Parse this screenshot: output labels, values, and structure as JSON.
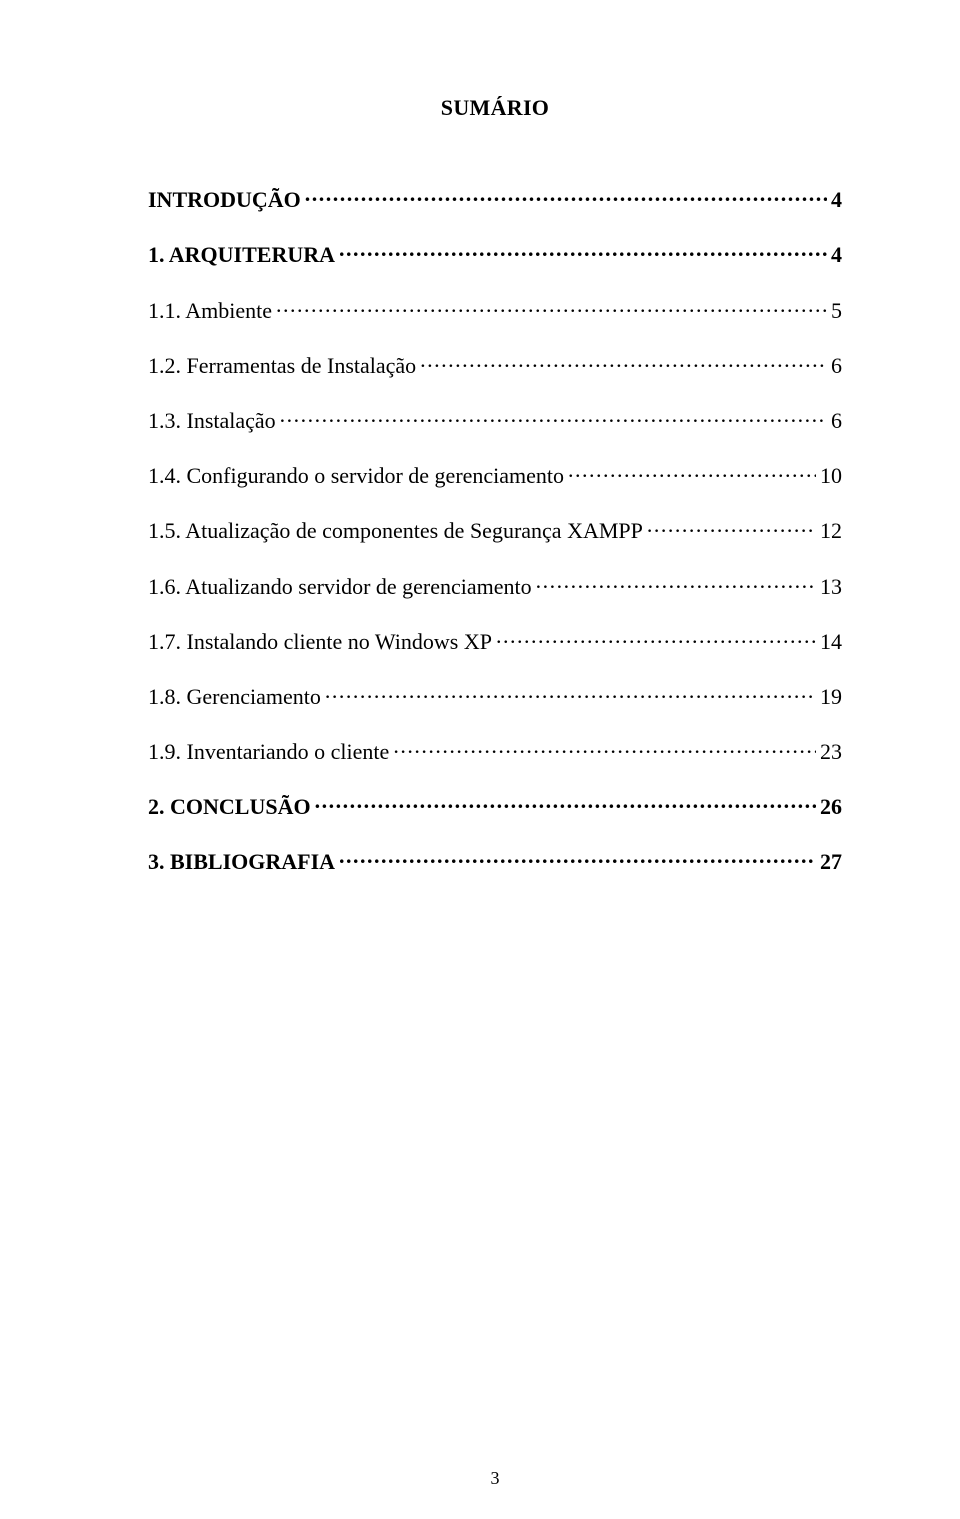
{
  "title": "SUMÁRIO",
  "pageNumber": "3",
  "toc": [
    {
      "label": "INTRODUÇÃO",
      "page": "4",
      "bold": true
    },
    {
      "label": "1. ARQUITERURA",
      "page": "4",
      "bold": true
    },
    {
      "label": "1.1. Ambiente",
      "page": "5",
      "bold": false
    },
    {
      "label": "1.2. Ferramentas de Instalação",
      "page": "6",
      "bold": false
    },
    {
      "label": "1.3. Instalação",
      "page": "6",
      "bold": false
    },
    {
      "label": "1.4. Configurando o servidor de gerenciamento",
      "page": "10",
      "bold": false
    },
    {
      "label": "1.5. Atualização de componentes de Segurança XAMPP",
      "page": "12",
      "bold": false
    },
    {
      "label": "1.6. Atualizando servidor de gerenciamento",
      "page": "13",
      "bold": false
    },
    {
      "label": "1.7. Instalando cliente no Windows XP",
      "page": "14",
      "bold": false
    },
    {
      "label": "1.8. Gerenciamento",
      "page": "19",
      "bold": false
    },
    {
      "label": "1.9. Inventariando o cliente",
      "page": "23",
      "bold": false
    },
    {
      "label": "2. CONCLUSÃO",
      "page": "26",
      "bold": true
    },
    {
      "label": "3. BIBLIOGRAFIA",
      "page": "27",
      "bold": true
    }
  ]
}
